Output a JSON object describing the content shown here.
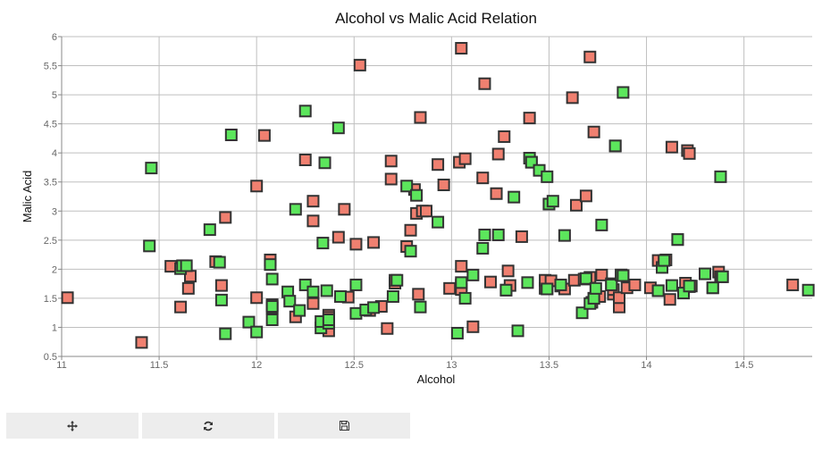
{
  "chart_data": {
    "type": "scatter",
    "title": "Alcohol vs Malic Acid Relation",
    "xlabel": "Alcohol",
    "ylabel": "Malic Acid",
    "xlim": [
      11.0,
      14.85
    ],
    "ylim": [
      0.5,
      6.0
    ],
    "x_ticks": [
      "11",
      "11.5",
      "12",
      "12.5",
      "13",
      "13.5",
      "14",
      "14.5"
    ],
    "y_ticks": [
      "0.5",
      "1",
      "1.5",
      "2",
      "2.5",
      "3",
      "3.5",
      "4",
      "4.5",
      "5",
      "5.5",
      "6"
    ],
    "grid": true,
    "series": [
      {
        "color": "#f08070",
        "points": [
          [
            11.03,
            1.51
          ],
          [
            11.41,
            0.74
          ],
          [
            11.56,
            2.05
          ],
          [
            11.61,
            1.35
          ],
          [
            11.65,
            1.67
          ],
          [
            11.66,
            1.88
          ],
          [
            11.79,
            2.13
          ],
          [
            11.82,
            1.72
          ],
          [
            11.84,
            2.89
          ],
          [
            12.0,
            1.51
          ],
          [
            12.0,
            3.43
          ],
          [
            12.04,
            4.3
          ],
          [
            12.07,
            2.16
          ],
          [
            12.08,
            1.33
          ],
          [
            12.08,
            1.39
          ],
          [
            12.2,
            1.18
          ],
          [
            12.25,
            3.88
          ],
          [
            12.29,
            2.83
          ],
          [
            12.29,
            1.41
          ],
          [
            12.29,
            3.17
          ],
          [
            12.37,
            1.21
          ],
          [
            12.37,
            1.17
          ],
          [
            12.37,
            0.94
          ],
          [
            12.42,
            2.55
          ],
          [
            12.45,
            3.03
          ],
          [
            12.47,
            1.52
          ],
          [
            12.51,
            2.43
          ],
          [
            12.53,
            5.51
          ],
          [
            12.58,
            1.29
          ],
          [
            12.6,
            2.46
          ],
          [
            12.64,
            1.36
          ],
          [
            12.67,
            0.98
          ],
          [
            12.69,
            3.86
          ],
          [
            12.69,
            3.55
          ],
          [
            12.71,
            1.76
          ],
          [
            12.71,
            1.81
          ],
          [
            12.77,
            2.39
          ],
          [
            12.79,
            2.67
          ],
          [
            12.81,
            3.37
          ],
          [
            12.82,
            2.96
          ],
          [
            12.83,
            1.57
          ],
          [
            12.84,
            4.61
          ],
          [
            12.85,
            3.0
          ],
          [
            12.87,
            3.0
          ],
          [
            12.93,
            3.8
          ],
          [
            12.96,
            3.45
          ],
          [
            12.99,
            1.67
          ],
          [
            13.04,
            3.84
          ],
          [
            13.05,
            1.73
          ],
          [
            13.05,
            2.05
          ],
          [
            13.05,
            1.65
          ],
          [
            13.05,
            5.8
          ],
          [
            13.07,
            3.9
          ],
          [
            13.11,
            1.01
          ],
          [
            13.16,
            3.57
          ],
          [
            13.17,
            5.19
          ],
          [
            13.2,
            1.78
          ],
          [
            13.23,
            3.3
          ],
          [
            13.24,
            3.98
          ],
          [
            13.27,
            4.28
          ],
          [
            13.28,
            1.64
          ],
          [
            13.29,
            1.97
          ],
          [
            13.3,
            1.72
          ],
          [
            13.36,
            2.56
          ],
          [
            13.4,
            4.6
          ],
          [
            13.41,
            3.84
          ],
          [
            13.48,
            1.67
          ],
          [
            13.48,
            1.81
          ],
          [
            13.49,
            1.66
          ],
          [
            13.5,
            3.12
          ],
          [
            13.51,
            1.8
          ],
          [
            13.56,
            1.71
          ],
          [
            13.58,
            1.66
          ],
          [
            13.62,
            4.95
          ],
          [
            13.63,
            1.81
          ],
          [
            13.64,
            3.1
          ],
          [
            13.68,
            1.83
          ],
          [
            13.69,
            3.26
          ],
          [
            13.71,
            1.86
          ],
          [
            13.71,
            5.65
          ],
          [
            13.72,
            1.43
          ],
          [
            13.73,
            1.5
          ],
          [
            13.73,
            4.36
          ],
          [
            13.76,
            1.53
          ],
          [
            13.77,
            1.9
          ],
          [
            13.82,
            1.75
          ],
          [
            13.83,
            1.57
          ],
          [
            13.83,
            1.65
          ],
          [
            13.84,
            4.12
          ],
          [
            13.86,
            1.35
          ],
          [
            13.86,
            1.51
          ],
          [
            13.87,
            1.9
          ],
          [
            13.88,
            1.89
          ],
          [
            13.9,
            1.68
          ],
          [
            13.94,
            1.73
          ],
          [
            14.02,
            1.68
          ],
          [
            14.06,
            2.15
          ],
          [
            14.06,
            1.63
          ],
          [
            14.1,
            2.16
          ],
          [
            14.12,
            1.48
          ],
          [
            14.13,
            4.1
          ],
          [
            14.16,
            2.51
          ],
          [
            14.19,
            1.59
          ],
          [
            14.2,
            1.76
          ],
          [
            14.21,
            4.04
          ],
          [
            14.22,
            3.99
          ],
          [
            14.22,
            1.7
          ],
          [
            14.23,
            1.71
          ],
          [
            14.34,
            1.68
          ],
          [
            14.37,
            1.95
          ],
          [
            14.38,
            1.87
          ],
          [
            14.39,
            1.87
          ],
          [
            14.75,
            1.73
          ]
        ]
      },
      {
        "color": "#5ce65c",
        "points": [
          [
            11.45,
            2.4
          ],
          [
            11.46,
            3.74
          ],
          [
            11.61,
            2.01
          ],
          [
            11.62,
            2.06
          ],
          [
            11.64,
            2.06
          ],
          [
            11.76,
            2.68
          ],
          [
            11.81,
            2.12
          ],
          [
            11.82,
            1.47
          ],
          [
            11.84,
            0.89
          ],
          [
            11.87,
            4.31
          ],
          [
            11.96,
            1.09
          ],
          [
            12.0,
            0.92
          ],
          [
            12.07,
            2.08
          ],
          [
            12.08,
            1.83
          ],
          [
            12.08,
            1.13
          ],
          [
            12.08,
            1.36
          ],
          [
            12.16,
            1.61
          ],
          [
            12.17,
            1.45
          ],
          [
            12.2,
            3.03
          ],
          [
            12.22,
            1.29
          ],
          [
            12.25,
            1.73
          ],
          [
            12.25,
            4.72
          ],
          [
            12.29,
            1.61
          ],
          [
            12.33,
            0.99
          ],
          [
            12.33,
            1.1
          ],
          [
            12.34,
            2.45
          ],
          [
            12.35,
            3.83
          ],
          [
            12.36,
            1.63
          ],
          [
            12.37,
            1.07
          ],
          [
            12.37,
            1.13
          ],
          [
            12.42,
            4.43
          ],
          [
            12.43,
            1.53
          ],
          [
            12.51,
            1.73
          ],
          [
            12.51,
            1.24
          ],
          [
            12.56,
            1.3
          ],
          [
            12.6,
            1.34
          ],
          [
            12.7,
            1.53
          ],
          [
            12.72,
            1.81
          ],
          [
            12.77,
            3.43
          ],
          [
            12.79,
            2.31
          ],
          [
            12.82,
            3.27
          ],
          [
            12.84,
            1.35
          ],
          [
            12.93,
            2.81
          ],
          [
            13.03,
            0.9
          ],
          [
            13.05,
            1.77
          ],
          [
            13.07,
            1.5
          ],
          [
            13.11,
            1.9
          ],
          [
            13.16,
            2.36
          ],
          [
            13.17,
            2.59
          ],
          [
            13.24,
            2.59
          ],
          [
            13.28,
            1.64
          ],
          [
            13.32,
            3.24
          ],
          [
            13.34,
            0.94
          ],
          [
            13.39,
            1.77
          ],
          [
            13.4,
            3.91
          ],
          [
            13.41,
            3.84
          ],
          [
            13.45,
            3.7
          ],
          [
            13.49,
            3.59
          ],
          [
            13.49,
            1.66
          ],
          [
            13.5,
            3.12
          ],
          [
            13.52,
            3.17
          ],
          [
            13.56,
            1.73
          ],
          [
            13.58,
            2.58
          ],
          [
            13.67,
            1.25
          ],
          [
            13.69,
            1.84
          ],
          [
            13.71,
            1.41
          ],
          [
            13.73,
            1.5
          ],
          [
            13.74,
            1.67
          ],
          [
            13.77,
            2.76
          ],
          [
            13.82,
            1.73
          ],
          [
            13.84,
            4.12
          ],
          [
            13.87,
            1.9
          ],
          [
            13.88,
            5.04
          ],
          [
            13.88,
            1.89
          ],
          [
            14.06,
            1.63
          ],
          [
            14.08,
            2.03
          ],
          [
            14.09,
            2.15
          ],
          [
            14.13,
            1.72
          ],
          [
            14.16,
            2.51
          ],
          [
            14.19,
            1.59
          ],
          [
            14.22,
            1.71
          ],
          [
            14.3,
            1.92
          ],
          [
            14.34,
            1.68
          ],
          [
            14.38,
            3.59
          ],
          [
            14.39,
            1.87
          ],
          [
            14.83,
            1.64
          ]
        ]
      }
    ]
  },
  "toolbar": {
    "pan_icon": "move-icon",
    "reset_icon": "refresh-icon",
    "save_icon": "save-icon"
  }
}
